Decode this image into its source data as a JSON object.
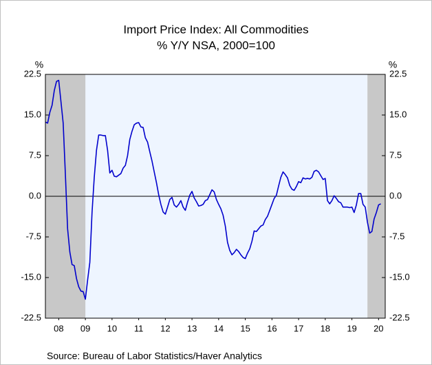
{
  "chart_data": {
    "type": "line",
    "title": "Import Price Index: All Commodities",
    "subtitle": "% Y/Y   NSA, 2000=100",
    "y_label": "%",
    "y2_label": "%",
    "source": "Source:  Bureau of Labor Statistics/Haver Analytics",
    "xlim": [
      2008,
      2020.75
    ],
    "xticks": [
      {
        "value": 2008.5,
        "label": "08"
      },
      {
        "value": 2009.5,
        "label": "09"
      },
      {
        "value": 2010.5,
        "label": "10"
      },
      {
        "value": 2011.5,
        "label": "11"
      },
      {
        "value": 2012.5,
        "label": "12"
      },
      {
        "value": 2013.5,
        "label": "13"
      },
      {
        "value": 2014.5,
        "label": "14"
      },
      {
        "value": 2015.5,
        "label": "15"
      },
      {
        "value": 2016.5,
        "label": "16"
      },
      {
        "value": 2017.5,
        "label": "17"
      },
      {
        "value": 2018.5,
        "label": "18"
      },
      {
        "value": 2019.5,
        "label": "19"
      },
      {
        "value": 2020.5,
        "label": "20"
      }
    ],
    "ylim": [
      -22.5,
      22.5
    ],
    "yticks": [
      22.5,
      {
        "value": 15,
        "label": "15.0"
      },
      7.5,
      {
        "value": 0,
        "label": "0.0"
      },
      -7.5,
      {
        "value": -15,
        "label": "-15.0"
      },
      -22.5
    ],
    "y2lim": [
      -22.5,
      22.5
    ],
    "y2ticks": [
      22.5,
      {
        "value": 15,
        "label": "15.0"
      },
      7.5,
      {
        "value": 0,
        "label": "0.0"
      },
      -7.5,
      {
        "value": -15,
        "label": "-15.0"
      },
      -22.5
    ],
    "shaded_periods": [
      [
        2008,
        2009.5
      ],
      [
        2020.083,
        2020.75
      ]
    ],
    "shade_color": "#c8c8c8",
    "plot_background": "#eef5ff",
    "zero_line": true,
    "x": [
      2008,
      2008.083,
      2008.167,
      2008.25,
      2008.333,
      2008.417,
      2008.5,
      2008.583,
      2008.667,
      2008.75,
      2008.833,
      2008.917,
      2009,
      2009.083,
      2009.167,
      2009.25,
      2009.333,
      2009.417,
      2009.5,
      2009.583,
      2009.667,
      2009.75,
      2009.833,
      2009.917,
      2010,
      2010.083,
      2010.167,
      2010.25,
      2010.333,
      2010.417,
      2010.5,
      2010.583,
      2010.667,
      2010.75,
      2010.833,
      2010.917,
      2011,
      2011.083,
      2011.167,
      2011.25,
      2011.333,
      2011.417,
      2011.5,
      2011.583,
      2011.667,
      2011.75,
      2011.833,
      2011.917,
      2012,
      2012.083,
      2012.167,
      2012.25,
      2012.333,
      2012.417,
      2012.5,
      2012.583,
      2012.667,
      2012.75,
      2012.833,
      2012.917,
      2013,
      2013.083,
      2013.167,
      2013.25,
      2013.333,
      2013.417,
      2013.5,
      2013.583,
      2013.667,
      2013.75,
      2013.833,
      2013.917,
      2014,
      2014.083,
      2014.167,
      2014.25,
      2014.333,
      2014.417,
      2014.5,
      2014.583,
      2014.667,
      2014.75,
      2014.833,
      2014.917,
      2015,
      2015.083,
      2015.167,
      2015.25,
      2015.333,
      2015.417,
      2015.5,
      2015.583,
      2015.667,
      2015.75,
      2015.833,
      2015.917,
      2016,
      2016.083,
      2016.167,
      2016.25,
      2016.333,
      2016.417,
      2016.5,
      2016.583,
      2016.667,
      2016.75,
      2016.833,
      2016.917,
      2017,
      2017.083,
      2017.167,
      2017.25,
      2017.333,
      2017.417,
      2017.5,
      2017.583,
      2017.667,
      2017.75,
      2017.833,
      2017.917,
      2018,
      2018.083,
      2018.167,
      2018.25,
      2018.333,
      2018.417,
      2018.5,
      2018.583,
      2018.667,
      2018.75,
      2018.833,
      2018.917,
      2019,
      2019.083,
      2019.167,
      2019.25,
      2019.333,
      2019.417,
      2019.5,
      2019.583,
      2019.667,
      2019.75,
      2019.833,
      2019.917,
      2020,
      2020.083,
      2020.167,
      2020.25,
      2020.333,
      2020.417,
      2020.5,
      2020.583
    ],
    "series": [
      {
        "name": "Import Price Index: All Commodities",
        "color": "#0000cc",
        "values": [
          13.7,
          13.5,
          15.5,
          16.8,
          19.5,
          21.2,
          21.4,
          17.5,
          13.5,
          4,
          -6,
          -10.3,
          -12.6,
          -12.8,
          -15.2,
          -16.7,
          -17.5,
          -17.6,
          -19,
          -15.5,
          -12.2,
          -3,
          3.5,
          8.5,
          11.3,
          11.3,
          11.2,
          11.2,
          8.5,
          4.3,
          4.8,
          3.7,
          3.6,
          3.9,
          4.2,
          5.2,
          5.7,
          7.5,
          10.5,
          12,
          13.2,
          13.5,
          13.6,
          12.8,
          12.7,
          10.8,
          10,
          8.2,
          6.5,
          4.5,
          2.5,
          0.3,
          -1.5,
          -2.9,
          -3.3,
          -2,
          -0.6,
          -0.2,
          -1.6,
          -2,
          -1.5,
          -0.8,
          -2,
          -2.6,
          -1.1,
          0.2,
          0.9,
          -0.3,
          -1,
          -1.8,
          -1.7,
          -1.5,
          -0.8,
          -0.6,
          0.3,
          1.2,
          0.8,
          -0.6,
          -1.5,
          -2.3,
          -3.5,
          -5.5,
          -8.5,
          -10,
          -10.8,
          -10.4,
          -9.8,
          -10.2,
          -10.8,
          -11.3,
          -11.5,
          -10.5,
          -9.7,
          -8.3,
          -6.4,
          -6.5,
          -6,
          -5.5,
          -5.3,
          -4.3,
          -3.7,
          -2.6,
          -1.5,
          -0.4,
          0.2,
          1.9,
          3.5,
          4.5,
          4,
          3.4,
          2,
          1.3,
          1.1,
          1.8,
          2.7,
          2.5,
          3.4,
          3.2,
          3.3,
          3.2,
          3.5,
          4.6,
          4.8,
          4.5,
          3.8,
          3.1,
          3.3,
          -0.8,
          -1.4,
          -0.8,
          0.1,
          -0.4,
          -1,
          -1.2,
          -2,
          -2,
          -2,
          -2.1,
          -2,
          -3,
          -1.6,
          0.5,
          0.5,
          -1.5,
          -2,
          -4.8,
          -6.8,
          -6.5,
          -4.2,
          -3,
          -1.6,
          -1.4
        ]
      }
    ]
  }
}
